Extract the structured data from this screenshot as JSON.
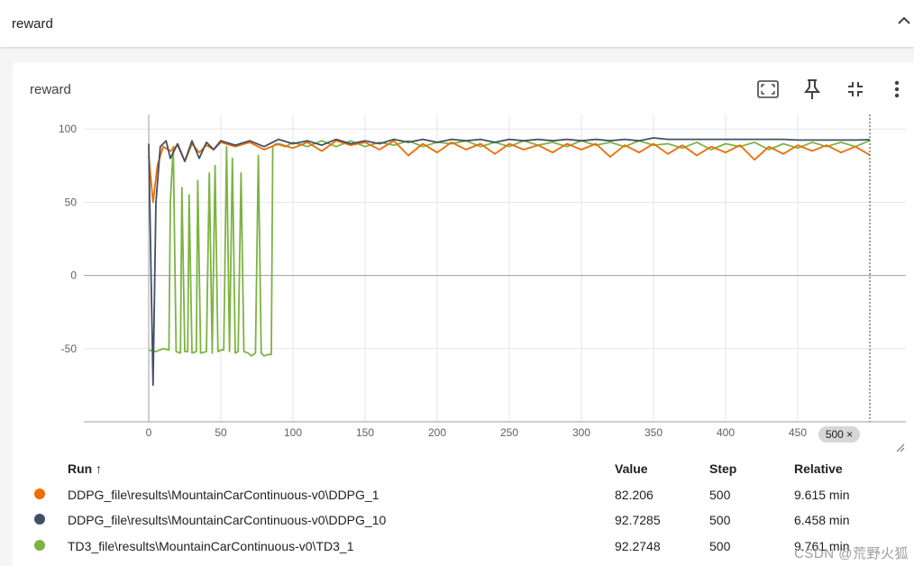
{
  "header": {
    "title": "reward"
  },
  "card": {
    "title": "reward",
    "tools": [
      "fit-domain-icon",
      "pin-icon",
      "collapse-card-icon",
      "more-vert-icon"
    ]
  },
  "step_marker": {
    "label": "500 ×",
    "value": 500
  },
  "table": {
    "headers": {
      "run": "Run ↑",
      "value": "Value",
      "step": "Step",
      "relative": "Relative"
    },
    "rows": [
      {
        "run": "DDPG_file\\results\\MountainCarContinuous-v0\\DDPG_1",
        "value": "82.206",
        "step": "500",
        "relative": "9.615 min",
        "color": "#ef6c00"
      },
      {
        "run": "DDPG_file\\results\\MountainCarContinuous-v0\\DDPG_10",
        "value": "92.7285",
        "step": "500",
        "relative": "6.458 min",
        "color": "#425066"
      },
      {
        "run": "TD3_file\\results\\MountainCarContinuous-v0\\TD3_1",
        "value": "92.2748",
        "step": "500",
        "relative": "9.761 min",
        "color": "#7cb342"
      }
    ]
  },
  "watermark": "CSDN @荒野火狐",
  "chart_data": {
    "type": "line",
    "title": "reward",
    "xlabel": "",
    "ylabel": "",
    "xlim": [
      -45,
      525
    ],
    "ylim": [
      -100,
      110
    ],
    "x_ticks": [
      "0",
      "50",
      "100",
      "150",
      "200",
      "250",
      "300",
      "350",
      "400",
      "450"
    ],
    "y_ticks": [
      "100",
      "50",
      "0",
      "-50"
    ],
    "grid": true,
    "series": [
      {
        "name": "DDPG_file\\results\\MountainCarContinuous-v0\\DDPG_1",
        "color": "#ef6c00",
        "points": [
          [
            0,
            82
          ],
          [
            3,
            50
          ],
          [
            6,
            75
          ],
          [
            10,
            88
          ],
          [
            15,
            85
          ],
          [
            20,
            89
          ],
          [
            25,
            78
          ],
          [
            30,
            90
          ],
          [
            35,
            84
          ],
          [
            40,
            89
          ],
          [
            45,
            86
          ],
          [
            50,
            91
          ],
          [
            60,
            88
          ],
          [
            70,
            91
          ],
          [
            80,
            86
          ],
          [
            90,
            90
          ],
          [
            100,
            87
          ],
          [
            110,
            91
          ],
          [
            120,
            85
          ],
          [
            130,
            92
          ],
          [
            140,
            89
          ],
          [
            150,
            91
          ],
          [
            160,
            86
          ],
          [
            170,
            92
          ],
          [
            180,
            82
          ],
          [
            190,
            90
          ],
          [
            200,
            84
          ],
          [
            210,
            91
          ],
          [
            220,
            86
          ],
          [
            230,
            90
          ],
          [
            240,
            83
          ],
          [
            250,
            90
          ],
          [
            260,
            86
          ],
          [
            270,
            89
          ],
          [
            280,
            84
          ],
          [
            290,
            90
          ],
          [
            300,
            86
          ],
          [
            310,
            90
          ],
          [
            320,
            81
          ],
          [
            330,
            89
          ],
          [
            340,
            84
          ],
          [
            350,
            90
          ],
          [
            360,
            83
          ],
          [
            370,
            89
          ],
          [
            380,
            82
          ],
          [
            390,
            88
          ],
          [
            400,
            84
          ],
          [
            410,
            89
          ],
          [
            420,
            79
          ],
          [
            430,
            88
          ],
          [
            440,
            83
          ],
          [
            450,
            89
          ],
          [
            460,
            85
          ],
          [
            470,
            89
          ],
          [
            480,
            84
          ],
          [
            490,
            88
          ],
          [
            500,
            82.206
          ]
        ]
      },
      {
        "name": "DDPG_file\\results\\MountainCarContinuous-v0\\DDPG_10",
        "color": "#425066",
        "points": [
          [
            0,
            90
          ],
          [
            3,
            -75
          ],
          [
            5,
            50
          ],
          [
            8,
            88
          ],
          [
            12,
            92
          ],
          [
            15,
            80
          ],
          [
            20,
            90
          ],
          [
            25,
            78
          ],
          [
            30,
            92
          ],
          [
            35,
            80
          ],
          [
            40,
            91
          ],
          [
            45,
            86
          ],
          [
            50,
            92
          ],
          [
            60,
            89
          ],
          [
            70,
            92
          ],
          [
            80,
            88
          ],
          [
            90,
            93
          ],
          [
            100,
            90
          ],
          [
            110,
            92
          ],
          [
            120,
            89
          ],
          [
            130,
            93
          ],
          [
            140,
            90
          ],
          [
            150,
            92
          ],
          [
            160,
            90
          ],
          [
            170,
            93
          ],
          [
            180,
            91
          ],
          [
            190,
            93
          ],
          [
            200,
            91
          ],
          [
            210,
            93
          ],
          [
            220,
            92
          ],
          [
            230,
            93
          ],
          [
            240,
            91
          ],
          [
            250,
            93
          ],
          [
            260,
            92
          ],
          [
            270,
            93
          ],
          [
            280,
            92
          ],
          [
            290,
            93
          ],
          [
            300,
            92
          ],
          [
            310,
            93
          ],
          [
            320,
            92
          ],
          [
            330,
            93
          ],
          [
            340,
            92
          ],
          [
            350,
            94
          ],
          [
            360,
            93
          ],
          [
            370,
            93
          ],
          [
            380,
            93
          ],
          [
            390,
            93
          ],
          [
            400,
            93
          ],
          [
            410,
            93
          ],
          [
            420,
            93
          ],
          [
            430,
            93
          ],
          [
            440,
            93
          ],
          [
            450,
            92.5
          ],
          [
            460,
            92.5
          ],
          [
            470,
            92.5
          ],
          [
            480,
            92.5
          ],
          [
            490,
            92.5
          ],
          [
            500,
            92.7285
          ]
        ]
      },
      {
        "name": "TD3_file\\results\\MountainCarContinuous-v0\\TD3_1",
        "color": "#7cb342",
        "points": [
          [
            0,
            -51
          ],
          [
            5,
            -52
          ],
          [
            10,
            -50
          ],
          [
            14,
            -51
          ],
          [
            15,
            50
          ],
          [
            17,
            88
          ],
          [
            19,
            -52
          ],
          [
            22,
            -53
          ],
          [
            23,
            60
          ],
          [
            25,
            -52
          ],
          [
            27,
            -52
          ],
          [
            28,
            55
          ],
          [
            30,
            -53
          ],
          [
            33,
            -52
          ],
          [
            34,
            65
          ],
          [
            36,
            -53
          ],
          [
            40,
            -52
          ],
          [
            42,
            70
          ],
          [
            44,
            -53
          ],
          [
            46,
            75
          ],
          [
            48,
            -52
          ],
          [
            50,
            -51
          ],
          [
            52,
            -51
          ],
          [
            54,
            88
          ],
          [
            56,
            -52
          ],
          [
            58,
            80
          ],
          [
            60,
            -53
          ],
          [
            62,
            -52
          ],
          [
            64,
            70
          ],
          [
            66,
            -52
          ],
          [
            69,
            -53
          ],
          [
            71,
            -55
          ],
          [
            74,
            -53
          ],
          [
            76,
            82
          ],
          [
            78,
            -53
          ],
          [
            80,
            -55
          ],
          [
            83,
            -54
          ],
          [
            85,
            -54
          ],
          [
            86,
            88
          ],
          [
            88,
            90
          ],
          [
            95,
            88
          ],
          [
            100,
            91
          ],
          [
            110,
            88
          ],
          [
            120,
            92
          ],
          [
            130,
            88
          ],
          [
            140,
            92
          ],
          [
            150,
            88
          ],
          [
            160,
            91
          ],
          [
            170,
            89
          ],
          [
            180,
            92
          ],
          [
            190,
            88
          ],
          [
            200,
            91
          ],
          [
            210,
            90
          ],
          [
            220,
            92
          ],
          [
            230,
            88
          ],
          [
            240,
            91
          ],
          [
            250,
            88
          ],
          [
            260,
            92
          ],
          [
            270,
            89
          ],
          [
            280,
            91
          ],
          [
            290,
            88
          ],
          [
            300,
            92
          ],
          [
            310,
            89
          ],
          [
            320,
            91
          ],
          [
            330,
            88
          ],
          [
            340,
            92
          ],
          [
            350,
            89
          ],
          [
            360,
            90
          ],
          [
            370,
            87
          ],
          [
            380,
            91
          ],
          [
            390,
            86
          ],
          [
            400,
            90
          ],
          [
            410,
            88
          ],
          [
            420,
            91
          ],
          [
            430,
            86
          ],
          [
            440,
            90
          ],
          [
            450,
            87
          ],
          [
            460,
            91
          ],
          [
            470,
            88
          ],
          [
            480,
            91
          ],
          [
            490,
            88
          ],
          [
            500,
            92.2748
          ]
        ]
      }
    ]
  }
}
